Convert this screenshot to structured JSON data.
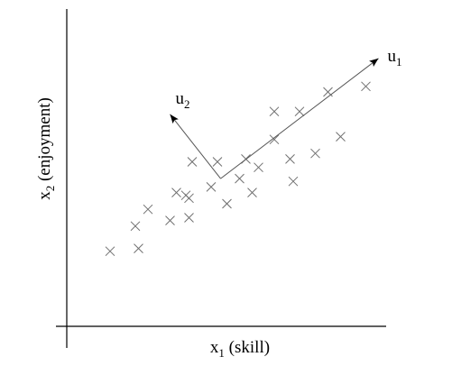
{
  "chart_data": {
    "type": "scatter",
    "xlabel": {
      "main": "x",
      "sub": "1",
      "rest": " (skill)"
    },
    "ylabel": {
      "main": "x",
      "sub": "2",
      "rest": " (enjoyment)"
    },
    "xlim": [
      0,
      100
    ],
    "ylim": [
      0,
      100
    ],
    "grid": false,
    "ticks": false,
    "points": [
      [
        12,
        23
      ],
      [
        21,
        24
      ],
      [
        20,
        32
      ],
      [
        24,
        38
      ],
      [
        31,
        34
      ],
      [
        33,
        44
      ],
      [
        37,
        35
      ],
      [
        37,
        42
      ],
      [
        36,
        43
      ],
      [
        38,
        55
      ],
      [
        44,
        46
      ],
      [
        46,
        55
      ],
      [
        49,
        40
      ],
      [
        53,
        49
      ],
      [
        55,
        56
      ],
      [
        57,
        44
      ],
      [
        59,
        53
      ],
      [
        64,
        63
      ],
      [
        64,
        73
      ],
      [
        70,
        48
      ],
      [
        69,
        56
      ],
      [
        72,
        73
      ],
      [
        77,
        58
      ],
      [
        81,
        80
      ],
      [
        85,
        64
      ],
      [
        93,
        82
      ]
    ],
    "vectors": [
      {
        "name": "u",
        "sub": "1",
        "from": [
          47,
          49
        ],
        "to": [
          97,
          92
        ]
      },
      {
        "name": "u",
        "sub": "2",
        "from": [
          47,
          49
        ],
        "to": [
          31,
          72
        ]
      }
    ]
  }
}
